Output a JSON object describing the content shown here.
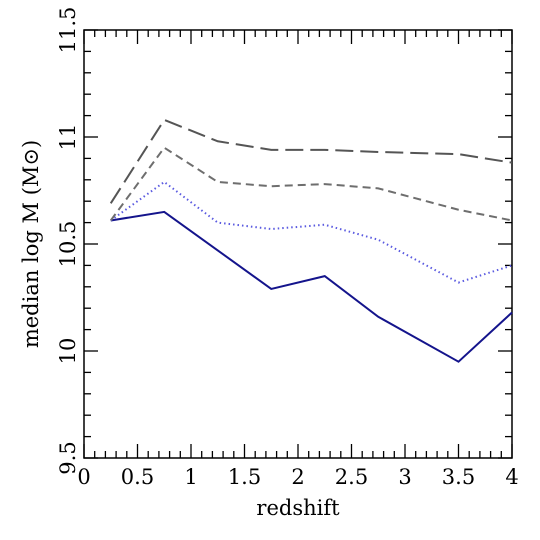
{
  "chart_data": {
    "type": "line",
    "xlabel": "redshift",
    "ylabel": "median log M (M⊙)",
    "x": [
      0.25,
      0.75,
      1.25,
      1.75,
      2.25,
      2.75,
      3.5,
      4.0
    ],
    "series": [
      {
        "color": "#14148c",
        "dash": "solid",
        "values": [
          10.61,
          10.65,
          10.47,
          10.29,
          10.35,
          10.16,
          9.95,
          10.18
        ]
      },
      {
        "color": "#5a5ae0",
        "dash": "dotted",
        "values": [
          10.61,
          10.79,
          10.6,
          10.57,
          10.59,
          10.52,
          10.32,
          10.4
        ]
      },
      {
        "color": "#6e6e6e",
        "dash": "short-dashed",
        "values": [
          10.61,
          10.95,
          10.79,
          10.77,
          10.78,
          10.76,
          10.66,
          10.61
        ]
      },
      {
        "color": "#555555",
        "dash": "long-dashed",
        "values": [
          10.69,
          11.08,
          10.98,
          10.94,
          10.94,
          10.93,
          10.92,
          10.88
        ]
      }
    ],
    "xlim": [
      0,
      4
    ],
    "ylim": [
      9.5,
      11.5
    ],
    "xticks": [
      0,
      0.5,
      1,
      1.5,
      2,
      2.5,
      3,
      3.5,
      4
    ],
    "yticks": [
      9.5,
      10,
      10.5,
      11,
      11.5
    ],
    "xminorticks": [
      0.1,
      0.2,
      0.3,
      0.4,
      0.6,
      0.7,
      0.8,
      0.9,
      1.1,
      1.2,
      1.3,
      1.4,
      1.6,
      1.7,
      1.8,
      1.9,
      2.1,
      2.2,
      2.3,
      2.4,
      2.6,
      2.7,
      2.8,
      2.9,
      3.1,
      3.2,
      3.3,
      3.4,
      3.6,
      3.7,
      3.8,
      3.9
    ],
    "yminorticks": [
      9.6,
      9.7,
      9.8,
      9.9,
      10.1,
      10.2,
      10.3,
      10.4,
      10.6,
      10.7,
      10.8,
      10.9,
      11.1,
      11.2,
      11.3,
      11.4
    ],
    "grid": false
  }
}
